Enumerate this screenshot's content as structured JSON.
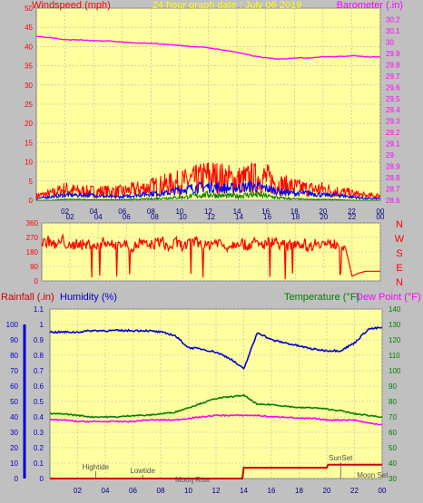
{
  "colors": {
    "background": "#c0c0c0",
    "plot_bg": "#ffffa0",
    "grid": "#b4b4b4",
    "wind": "#ff0000",
    "gust_blue": "#0000ff",
    "gust_green": "#008000",
    "barometer": "#ff00ff",
    "title": "#ffff00",
    "humidity": "#0000d0",
    "temperature": "#008000",
    "dewpoint": "#ff00ff",
    "rain": "#d00000",
    "annotation": "#505050"
  },
  "chart_data": [
    {
      "type": "line",
      "title": "24 hour graph date : July 06 2019",
      "ylabel": "Windspeed (mph)",
      "ylabel_right": "Barometer (.in)",
      "ylim": [
        0,
        50
      ],
      "ylim_right": [
        28.6,
        30.3
      ],
      "y_ticks": [
        0,
        5,
        10,
        15,
        20,
        25,
        30,
        35,
        40,
        45,
        50
      ],
      "y_ticks_right": [
        "28.6",
        "28.7",
        "28.8",
        "28.9",
        "29",
        "29.1",
        "29.2",
        "29.3",
        "29.4",
        "29.5",
        "29.6",
        "29.7",
        "29.8",
        "29.9",
        "30",
        "30.1",
        "30.2"
      ],
      "x_ticks": [
        "02",
        "04",
        "06",
        "08",
        "10",
        "12",
        "14",
        "16",
        "18",
        "20",
        "22",
        "00"
      ],
      "series": [
        {
          "name": "Barometer",
          "axis": "right",
          "x": [
            0,
            1,
            2,
            3,
            4,
            5,
            6,
            7,
            8,
            9,
            10,
            11,
            12,
            13,
            14,
            15,
            16,
            17,
            18,
            19,
            20,
            21,
            22,
            23,
            24
          ],
          "values": [
            30.05,
            30.04,
            30.02,
            30.02,
            30.01,
            30.01,
            30.0,
            29.99,
            29.99,
            29.98,
            29.97,
            29.96,
            29.95,
            29.93,
            29.91,
            29.88,
            29.86,
            29.85,
            29.86,
            29.86,
            29.87,
            29.87,
            29.88,
            29.87,
            29.87
          ]
        },
        {
          "name": "Windspeed max",
          "axis": "left",
          "x": [
            0,
            1,
            2,
            3,
            4,
            5,
            6,
            7,
            8,
            9,
            10,
            11,
            12,
            13,
            14,
            15,
            16,
            17,
            18,
            19,
            20,
            21,
            22,
            23,
            24
          ],
          "values": [
            2,
            3,
            5,
            4,
            4,
            4,
            4,
            5,
            6,
            7,
            8,
            9,
            11,
            10,
            9,
            10,
            10,
            7,
            6,
            5,
            5,
            4,
            3,
            2,
            2
          ]
        },
        {
          "name": "Windspeed avg",
          "axis": "left",
          "x": [
            0,
            1,
            2,
            3,
            4,
            5,
            6,
            7,
            8,
            9,
            10,
            11,
            12,
            13,
            14,
            15,
            16,
            17,
            18,
            19,
            20,
            21,
            22,
            23,
            24
          ],
          "values": [
            0.5,
            1,
            1.5,
            1.5,
            1.5,
            1,
            1,
            1.5,
            2,
            2,
            3,
            3.5,
            4,
            3.5,
            3.5,
            4,
            3.5,
            2.5,
            2,
            2,
            1.5,
            1.5,
            1,
            0.5,
            0.5
          ]
        },
        {
          "name": "Windspeed low",
          "axis": "left",
          "x": [
            0,
            1,
            2,
            3,
            4,
            5,
            6,
            7,
            8,
            9,
            10,
            11,
            12,
            13,
            14,
            15,
            16,
            17,
            18,
            19,
            20,
            21,
            22,
            23,
            24
          ],
          "values": [
            0,
            0,
            0.3,
            0.3,
            0.2,
            0.2,
            0.2,
            0.3,
            0.5,
            0.8,
            1,
            1.5,
            2,
            1.5,
            1.5,
            2,
            1.5,
            0.8,
            0.5,
            0.3,
            0.3,
            0.2,
            0,
            0,
            0
          ]
        }
      ]
    },
    {
      "type": "scatter",
      "y_ticks": [
        0,
        90,
        180,
        270,
        360
      ],
      "ylim": [
        0,
        360
      ],
      "compass_labels": [
        "N",
        "W",
        "S",
        "E",
        "N"
      ],
      "x_ticks": [
        "02",
        "04",
        "06",
        "08",
        "10",
        "12",
        "14",
        "16",
        "18",
        "20",
        "22",
        "00"
      ],
      "series": [
        {
          "name": "Wind direction",
          "x": [
            0,
            0.5,
            1,
            1.5,
            2,
            2.5,
            3,
            3.5,
            4,
            4.5,
            5,
            5.5,
            6,
            6.5,
            7,
            7.5,
            8,
            8.5,
            9,
            9.5,
            10,
            10.5,
            11,
            11.5,
            12,
            12.5,
            13,
            13.5,
            14,
            14.5,
            15,
            15.5,
            16,
            16.5,
            17,
            17.5,
            18,
            18.5,
            19,
            19.5,
            20,
            20.5,
            21,
            21.5,
            22,
            22.5,
            23,
            23.5,
            24
          ],
          "values": [
            230,
            250,
            215,
            255,
            200,
            240,
            220,
            230,
            210,
            250,
            220,
            235,
            225,
            205,
            240,
            215,
            230,
            250,
            200,
            240,
            215,
            230,
            250,
            210,
            235,
            245,
            210,
            225,
            250,
            215,
            240,
            220,
            235,
            250,
            225,
            215,
            240,
            230,
            210,
            245,
            230,
            225,
            235,
            215,
            30,
            50,
            60,
            60,
            60
          ]
        }
      ]
    },
    {
      "type": "line",
      "ylabel": "Rainfall (.in)",
      "ylabel2": "Humidity (%)",
      "ylabel_right": "Temperature (°F)",
      "ylabel_right2": "Dew Point (°F)",
      "ylim": [
        0,
        1.1
      ],
      "ylim_right": [
        30,
        140
      ],
      "y_ticks_rain": [
        "0",
        "0.1",
        "0.2",
        "0.3",
        "0.4",
        "0.5",
        "0.6",
        "0.7",
        "0.8",
        "0.9",
        "1",
        "1.1"
      ],
      "y_ticks_humidity": [
        "0",
        "10",
        "20",
        "30",
        "40",
        "50",
        "60",
        "70",
        "80",
        "90",
        "100"
      ],
      "y_ticks_right": [
        "30",
        "40",
        "50",
        "60",
        "70",
        "80",
        "90",
        "100",
        "110",
        "120",
        "130",
        "140"
      ],
      "x_ticks": [
        "02",
        "04",
        "06",
        "08",
        "10",
        "12",
        "14",
        "16",
        "18",
        "20",
        "22",
        "00"
      ],
      "series": [
        {
          "name": "Humidity",
          "axis": "humidity",
          "x": [
            0,
            1,
            2,
            3,
            4,
            5,
            6,
            7,
            8,
            9,
            10,
            11,
            12,
            13,
            14,
            15,
            16,
            17,
            18,
            19,
            20,
            21,
            22,
            23,
            24
          ],
          "values": [
            95,
            95,
            95,
            96,
            96,
            96,
            96,
            96,
            95,
            93,
            85,
            84,
            82,
            78,
            71,
            95,
            90,
            88,
            86,
            84,
            83,
            83,
            88,
            97,
            98
          ]
        },
        {
          "name": "Temperature",
          "axis": "right",
          "x": [
            0,
            1,
            2,
            3,
            4,
            5,
            6,
            7,
            8,
            9,
            10,
            11,
            12,
            13,
            14,
            15,
            16,
            17,
            18,
            19,
            20,
            21,
            22,
            23,
            24
          ],
          "values": [
            72,
            72,
            71,
            70,
            70,
            70,
            71,
            71,
            72,
            73,
            76,
            79,
            82,
            83,
            84,
            78,
            78,
            77,
            76,
            76,
            75,
            74,
            72,
            71,
            70
          ]
        },
        {
          "name": "Dew Point",
          "axis": "right",
          "x": [
            0,
            1,
            2,
            3,
            4,
            5,
            6,
            7,
            8,
            9,
            10,
            11,
            12,
            13,
            14,
            15,
            16,
            17,
            18,
            19,
            20,
            21,
            22,
            23,
            24
          ],
          "values": [
            68,
            68,
            67,
            67,
            67,
            67,
            67,
            68,
            68,
            68,
            69,
            70,
            71,
            71,
            71,
            71,
            70,
            70,
            69,
            69,
            68,
            68,
            68,
            66,
            65
          ]
        },
        {
          "name": "Rainfall",
          "axis": "rain",
          "x": [
            0,
            13.9,
            14,
            20,
            20.1,
            24
          ],
          "values": [
            0,
            0,
            0.07,
            0.07,
            0.09,
            0.09
          ]
        }
      ],
      "annotations": [
        "Hightide",
        "Lowtide",
        "Moon Rise",
        "SunSet",
        "Moon Set"
      ],
      "annotation_x": [
        3.3,
        6.7,
        10.3,
        21.0,
        23.3
      ]
    }
  ]
}
